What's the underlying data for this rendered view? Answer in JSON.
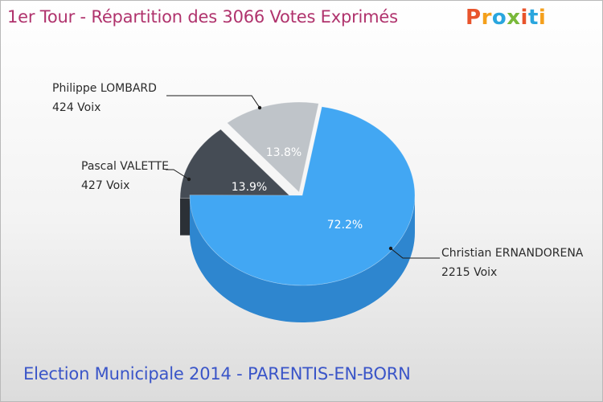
{
  "header": {
    "title": "1er Tour - Répartition des 3066 Votes Exprimés",
    "logo_text": "Proxiti",
    "logo_colors": [
      "#e8542c",
      "#f4a01c",
      "#2aa6de",
      "#79b93a",
      "#e8542c",
      "#2aa6de",
      "#f4a01c"
    ]
  },
  "footer": {
    "subtitle": "Election Municipale 2014 - PARENTIS-EN-BORN"
  },
  "chart_data": {
    "type": "pie",
    "title": "1er Tour - Répartition des 3066 Votes Exprimés",
    "total_votes": 3066,
    "slices": [
      {
        "name": "Christian ERNANDORENA",
        "votes_label": "2215 Voix",
        "votes": 2215,
        "percent": 72.2,
        "percent_label": "72.2%",
        "color": "#42a7f3",
        "side_color": "#2e86cf"
      },
      {
        "name": "Pascal VALETTE",
        "votes_label": "427 Voix",
        "votes": 427,
        "percent": 13.9,
        "percent_label": "13.9%",
        "color": "#454c55",
        "side_color": "#33383f"
      },
      {
        "name": "Philippe LOMBARD",
        "votes_label": "424 Voix",
        "votes": 424,
        "percent": 13.8,
        "percent_label": "13.8%",
        "color": "#bfc4c9",
        "side_color": "#9fa4a9"
      }
    ]
  }
}
